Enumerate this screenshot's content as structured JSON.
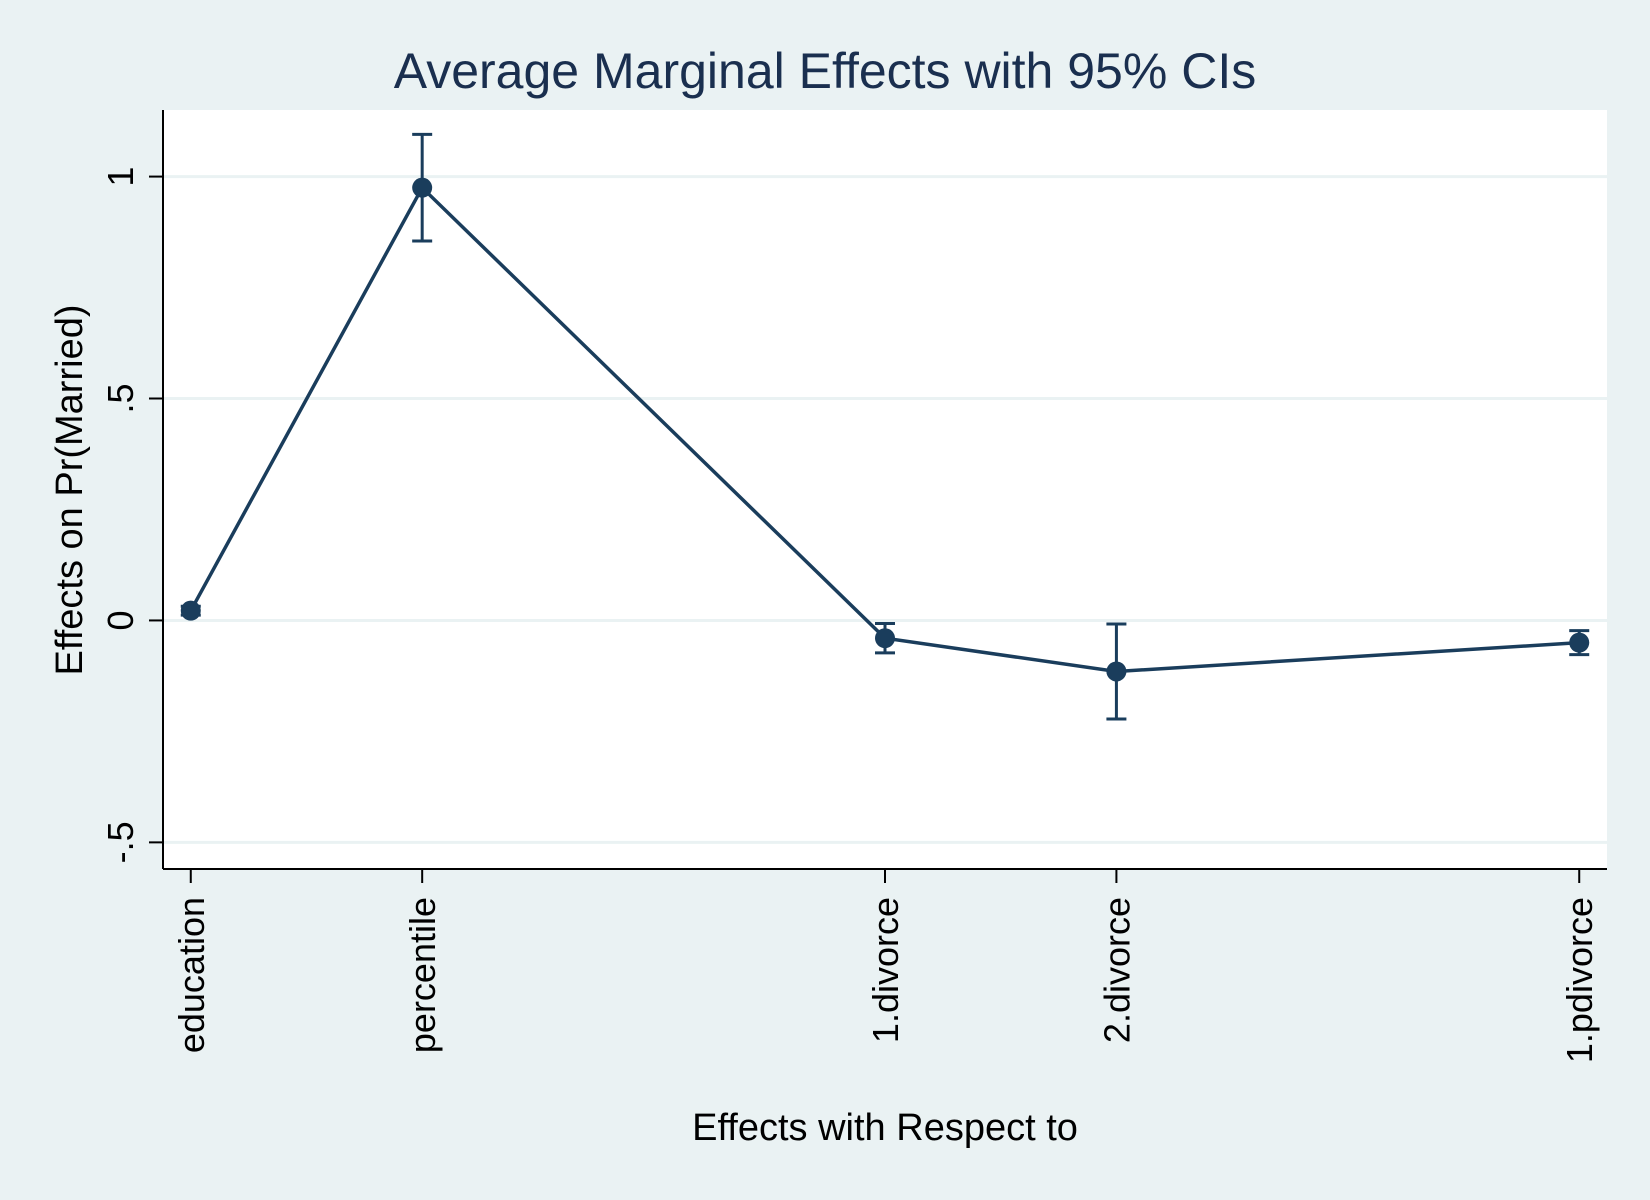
{
  "chart_data": {
    "type": "line",
    "title": "Average Marginal Effects with 95% CIs",
    "xlabel": "Effects with Respect to",
    "ylabel": "Effects on Pr(Married)",
    "x": [
      0,
      1,
      3,
      4,
      6
    ],
    "categories": [
      "education",
      "percentile",
      "1.divorce",
      "2.divorce",
      "1.pdivorce"
    ],
    "y_ticks": [
      -0.5,
      0,
      0.5,
      1
    ],
    "y_tick_labels": [
      "-.5",
      "0",
      ".5",
      "1"
    ],
    "ylim": [
      -0.56,
      1.15
    ],
    "xlim": [
      -0.12,
      6.12
    ],
    "grid": true,
    "error_bars": "95% CI",
    "series": [
      {
        "values": [
          0.022,
          0.975,
          -0.04,
          -0.115,
          -0.05
        ],
        "ci_lower": [
          0.012,
          0.855,
          -0.073,
          -0.222,
          -0.077
        ],
        "ci_upper": [
          0.032,
          1.095,
          -0.007,
          -0.008,
          -0.023
        ]
      }
    ],
    "colors": {
      "background": "#eaf2f3",
      "plot_area": "#ffffff",
      "grid": "#eaf2f3",
      "series": "#1a3d5c",
      "title": "#1a2f4f"
    }
  }
}
